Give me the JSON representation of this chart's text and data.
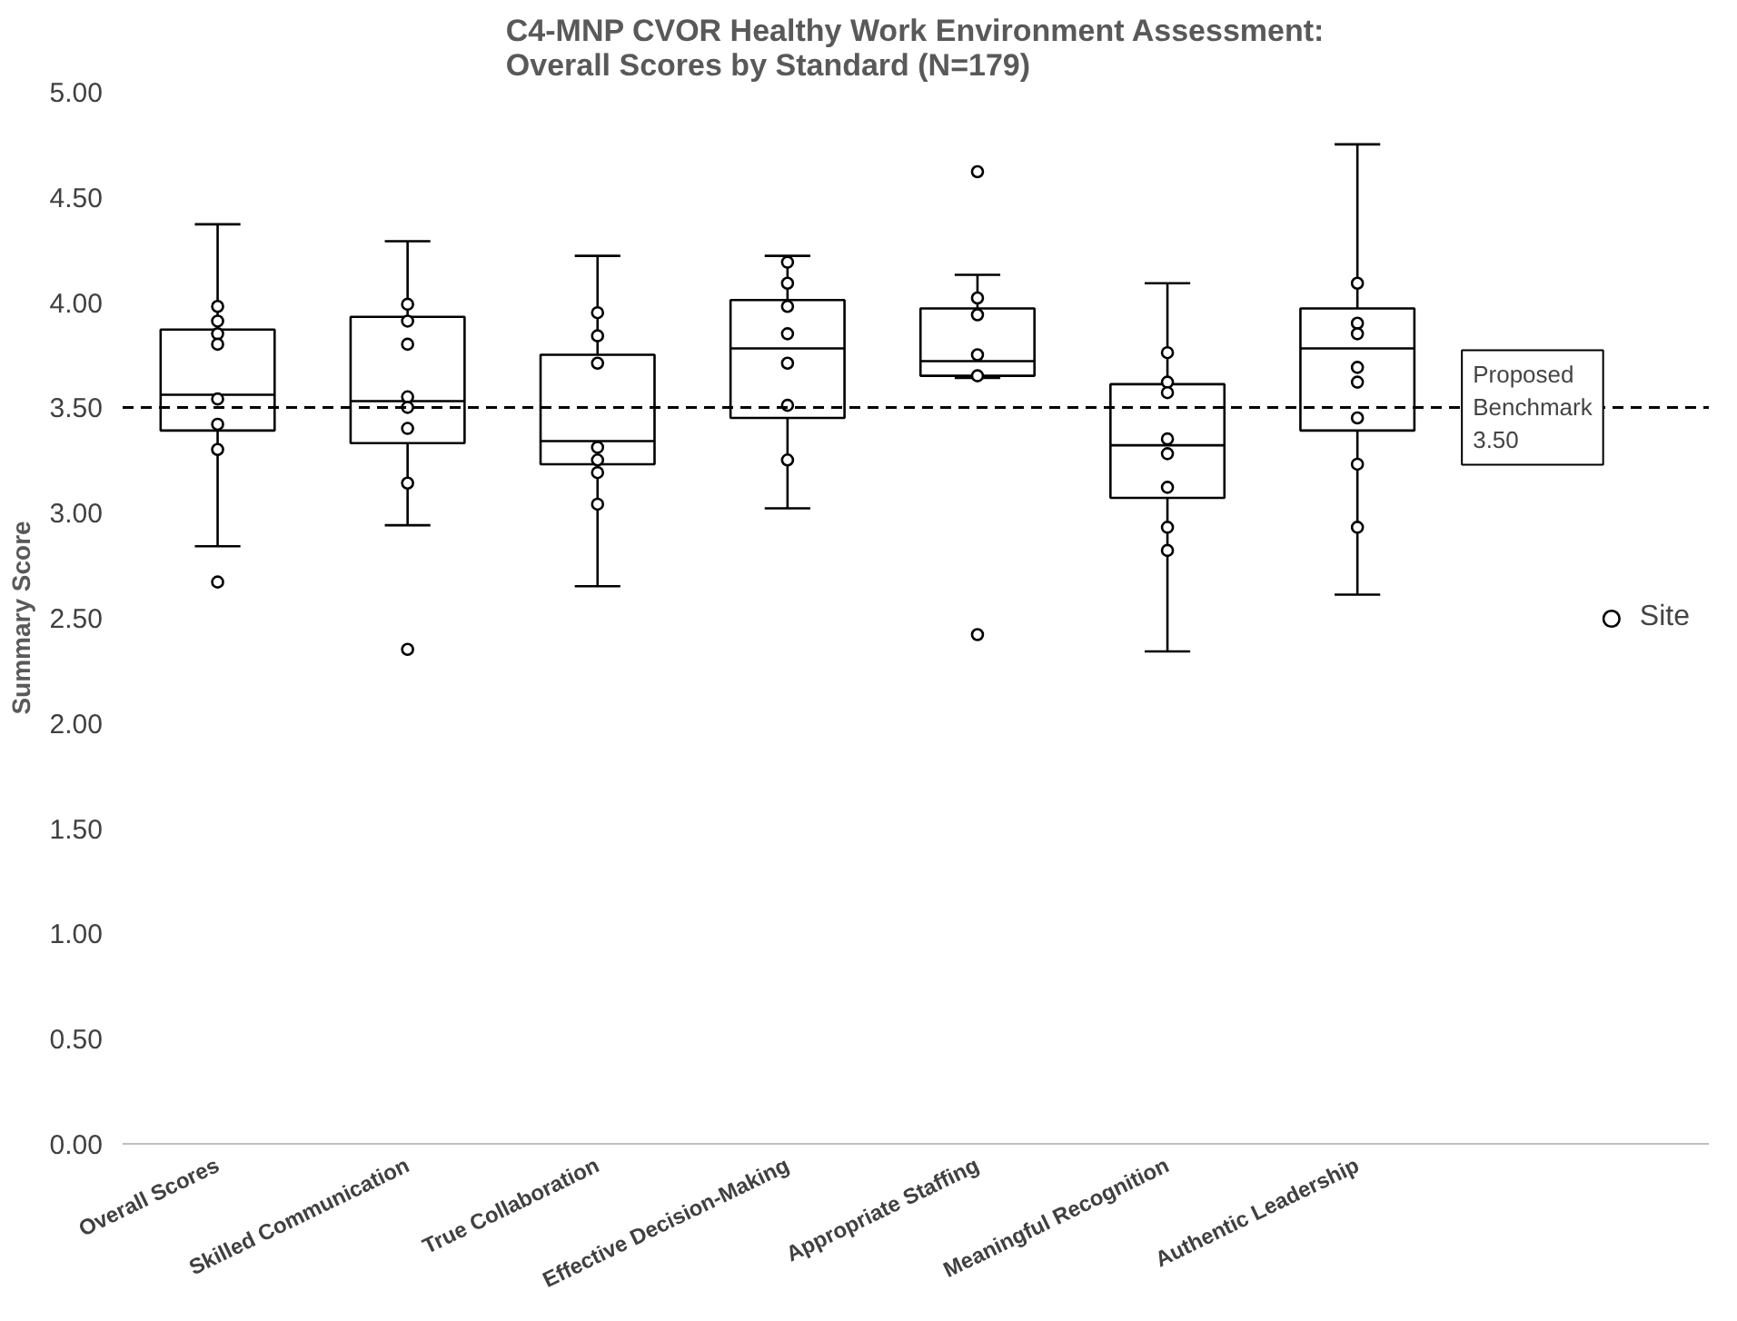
{
  "chart_data": {
    "type": "box",
    "title": "C4-MNP CVOR Healthy Work Environment Assessment:\nOverall Scores by Standard (N=179)",
    "ylabel": "Summary Score",
    "categories": [
      "Overall Scores",
      "Skilled Communication",
      "True Collaboration",
      "Effective Decision-Making",
      "Appropriate Staffing",
      "Meaningful Recognition",
      "Authentic Leadership"
    ],
    "boxes": [
      {
        "low": 2.84,
        "q1": 3.39,
        "median": 3.56,
        "q3": 3.87,
        "high": 4.37
      },
      {
        "low": 2.94,
        "q1": 3.33,
        "median": 3.53,
        "q3": 3.93,
        "high": 4.29
      },
      {
        "low": 2.65,
        "q1": 3.23,
        "median": 3.34,
        "q3": 3.75,
        "high": 4.22
      },
      {
        "low": 3.02,
        "q1": 3.45,
        "median": 3.78,
        "q3": 4.01,
        "high": 4.22
      },
      {
        "low": 3.64,
        "q1": 3.65,
        "median": 3.72,
        "q3": 3.97,
        "high": 4.13
      },
      {
        "low": 2.34,
        "q1": 3.07,
        "median": 3.32,
        "q3": 3.61,
        "high": 4.09
      },
      {
        "low": 2.61,
        "q1": 3.39,
        "median": 3.78,
        "q3": 3.97,
        "high": 4.75
      }
    ],
    "color": "#ffffff",
    "series": [
      {
        "type": "scatter",
        "name": "Site",
        "color": "#ffffff",
        "x": [
          "Overall Scores",
          "Overall Scores",
          "Overall Scores",
          "Overall Scores",
          "Overall Scores",
          "Overall Scores",
          "Overall Scores",
          "Overall Scores",
          "Skilled Communication",
          "Skilled Communication",
          "Skilled Communication",
          "Skilled Communication",
          "Skilled Communication",
          "Skilled Communication",
          "Skilled Communication",
          "Skilled Communication",
          "True Collaboration",
          "True Collaboration",
          "True Collaboration",
          "True Collaboration",
          "True Collaboration",
          "True Collaboration",
          "True Collaboration",
          "Effective Decision-Making",
          "Effective Decision-Making",
          "Effective Decision-Making",
          "Effective Decision-Making",
          "Effective Decision-Making",
          "Effective Decision-Making",
          "Effective Decision-Making",
          "Appropriate Staffing",
          "Appropriate Staffing",
          "Appropriate Staffing",
          "Appropriate Staffing",
          "Appropriate Staffing",
          "Appropriate Staffing",
          "Meaningful Recognition",
          "Meaningful Recognition",
          "Meaningful Recognition",
          "Meaningful Recognition",
          "Meaningful Recognition",
          "Meaningful Recognition",
          "Meaningful Recognition",
          "Meaningful Recognition",
          "Authentic Leadership",
          "Authentic Leadership",
          "Authentic Leadership",
          "Authentic Leadership",
          "Authentic Leadership",
          "Authentic Leadership",
          "Authentic Leadership",
          "Authentic Leadership"
        ],
        "values": [
          3.98,
          3.91,
          3.85,
          3.8,
          3.54,
          3.42,
          3.3,
          2.67,
          3.99,
          3.91,
          3.8,
          3.55,
          3.5,
          3.4,
          3.14,
          2.35,
          3.95,
          3.84,
          3.71,
          3.31,
          3.25,
          3.19,
          3.04,
          4.19,
          4.09,
          3.98,
          3.85,
          3.71,
          3.51,
          3.25,
          4.62,
          4.02,
          3.94,
          3.75,
          3.65,
          2.42,
          3.76,
          3.62,
          3.57,
          3.35,
          3.28,
          3.12,
          2.93,
          2.82,
          4.09,
          3.9,
          3.85,
          3.69,
          3.62,
          3.45,
          3.23,
          2.93
        ]
      }
    ],
    "marker": "circle",
    "ref_lines": [
      {
        "axis": "y",
        "value": 3.5,
        "label": "Proposed Benchmark 3.50",
        "line_style": "dashed",
        "color": "#000000"
      }
    ],
    "ylim": [
      0,
      5
    ],
    "yticks": [
      {
        "value": 0,
        "label": "0.00"
      },
      {
        "value": 0.5,
        "label": "0.50"
      },
      {
        "value": 1,
        "label": "1.00"
      },
      {
        "value": 1.5,
        "label": "1.50"
      },
      {
        "value": 2,
        "label": "2.00"
      },
      {
        "value": 2.5,
        "label": "2.50"
      },
      {
        "value": 3,
        "label": "3.00"
      },
      {
        "value": 3.5,
        "label": "3.50"
      },
      {
        "value": 4,
        "label": "4.00"
      },
      {
        "value": 4.5,
        "label": "4.50"
      },
      {
        "value": 5,
        "label": "5.00"
      }
    ],
    "grid": false,
    "legend": "right"
  }
}
